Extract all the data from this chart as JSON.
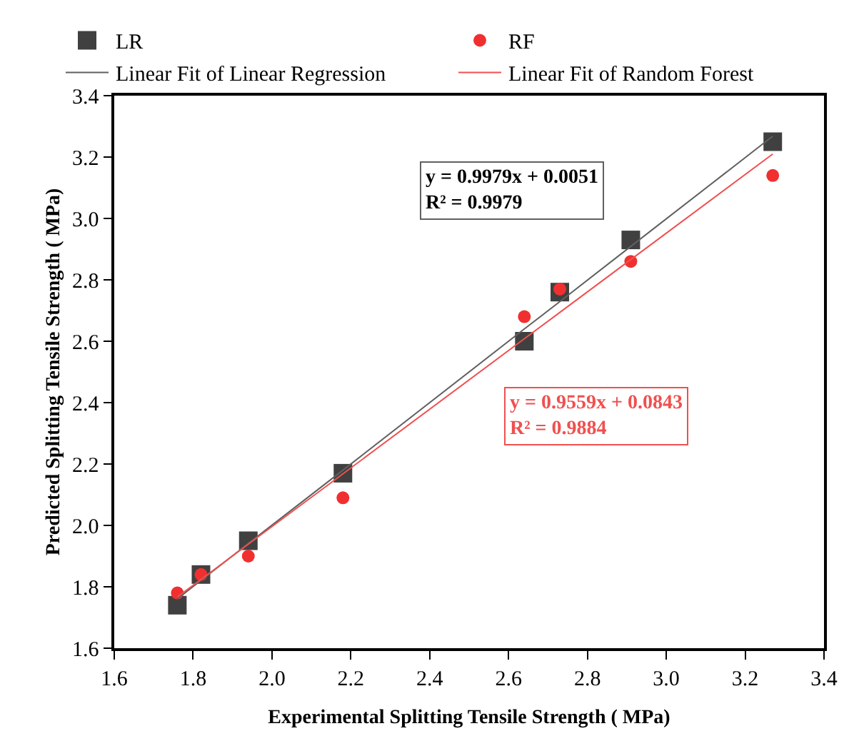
{
  "chart_data": {
    "type": "scatter",
    "xlabel": "Experimental Splitting Tensile Strength ( MPa)",
    "ylabel": "Predicted Splitting Tensile Strength ( MPa)",
    "x": [
      1.76,
      1.82,
      1.94,
      2.18,
      2.64,
      2.73,
      2.91,
      3.27
    ],
    "series": [
      {
        "name": "LR",
        "color": "#404040",
        "marker": "square",
        "values": [
          1.74,
          1.84,
          1.95,
          2.17,
          2.6,
          2.76,
          2.93,
          3.25
        ]
      },
      {
        "name": "RF",
        "color": "#f03030",
        "marker": "circle",
        "values": [
          1.78,
          1.84,
          1.9,
          2.09,
          2.68,
          2.77,
          2.86,
          3.14
        ]
      },
      {
        "name": "Linear Fit of Linear Regression",
        "type": "line",
        "color": "#606060",
        "values": [
          1.761,
          1.821,
          1.941,
          2.18,
          2.64,
          2.729,
          2.909,
          3.268
        ]
      },
      {
        "name": "Linear Fit of Random Forest",
        "type": "line",
        "color": "#f05050",
        "values": [
          1.767,
          1.824,
          1.939,
          2.168,
          2.608,
          2.694,
          2.866,
          3.21
        ]
      }
    ],
    "annotations": [
      "y = 0.9979x + 0.0051\nR² = 0.9979",
      "y = 0.9559x + 0.0843\nR² = 0.9884"
    ],
    "xlim": [
      1.6,
      3.4
    ],
    "xticks": [
      1.6,
      1.8,
      {
        "value": 2,
        "label": "2.0"
      },
      2.2,
      2.4,
      2.6,
      2.8,
      {
        "value": 3,
        "label": "3.0"
      },
      3.2,
      3.4
    ],
    "ylim": [
      1.6,
      3.4
    ],
    "yticks": [
      1.6,
      1.8,
      {
        "value": 2,
        "label": "2.0"
      },
      2.2,
      2.4,
      2.6,
      2.8,
      {
        "value": 3,
        "label": "3.0"
      },
      3.2,
      3.4
    ],
    "grid": false,
    "legend": "top"
  }
}
